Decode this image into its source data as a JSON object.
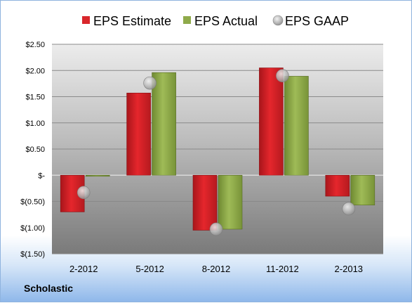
{
  "company": "Scholastic",
  "chart_data": {
    "type": "bar",
    "categories": [
      "2-2012",
      "5-2012",
      "8-2012",
      "11-2012",
      "2-2013"
    ],
    "series": [
      {
        "name": "EPS Estimate",
        "values": [
          -0.7,
          1.57,
          -1.05,
          2.05,
          -0.4
        ],
        "color": "#d9262b"
      },
      {
        "name": "EPS Actual",
        "values": [
          -0.02,
          1.96,
          -1.03,
          1.89,
          -0.57
        ],
        "color": "#8faa4a"
      },
      {
        "name": "EPS GAAP",
        "values": [
          -0.33,
          1.76,
          -1.03,
          1.9,
          -0.64
        ],
        "color": "#b7bcc4"
      }
    ],
    "y_ticks": [
      "$2.50",
      "$2.00",
      "$1.50",
      "$1.00",
      "$0.50",
      "$-",
      "$(0.50)",
      "$(1.00)",
      "$(1.50)"
    ],
    "ylim": [
      -1.5,
      2.5
    ],
    "grid": true,
    "legend_position": "top"
  }
}
